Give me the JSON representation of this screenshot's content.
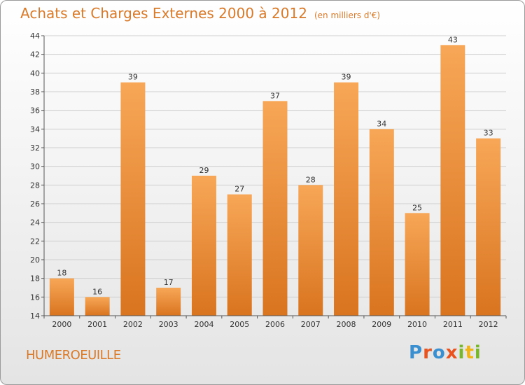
{
  "header": {
    "title": "Achats et Charges Externes 2000 à 2012",
    "unit": "(en milliers d'€)"
  },
  "footer": {
    "commune": "HUMEROEUILLE",
    "logo": [
      "P",
      "r",
      "o",
      "x",
      "i",
      "t",
      "i"
    ]
  },
  "colors": {
    "accent": "#d87a2a",
    "bar_light": "#f7a757",
    "bar_dark": "#d9741f",
    "logo": [
      "#3a8fd0",
      "#e8531f",
      "#3a8fd0",
      "#e8531f",
      "#78b62b",
      "#f0b416",
      "#78b62b"
    ]
  },
  "chart_data": {
    "type": "bar",
    "categories": [
      "2000",
      "2001",
      "2002",
      "2003",
      "2004",
      "2005",
      "2006",
      "2007",
      "2008",
      "2009",
      "2010",
      "2011",
      "2012"
    ],
    "values": [
      18,
      16,
      39,
      17,
      29,
      27,
      37,
      28,
      39,
      34,
      25,
      43,
      33
    ],
    "ylim": [
      14,
      44
    ],
    "yticks": [
      14,
      16,
      18,
      20,
      22,
      24,
      26,
      28,
      30,
      32,
      34,
      36,
      38,
      40,
      42,
      44
    ],
    "grid": true,
    "data_labels": true
  }
}
